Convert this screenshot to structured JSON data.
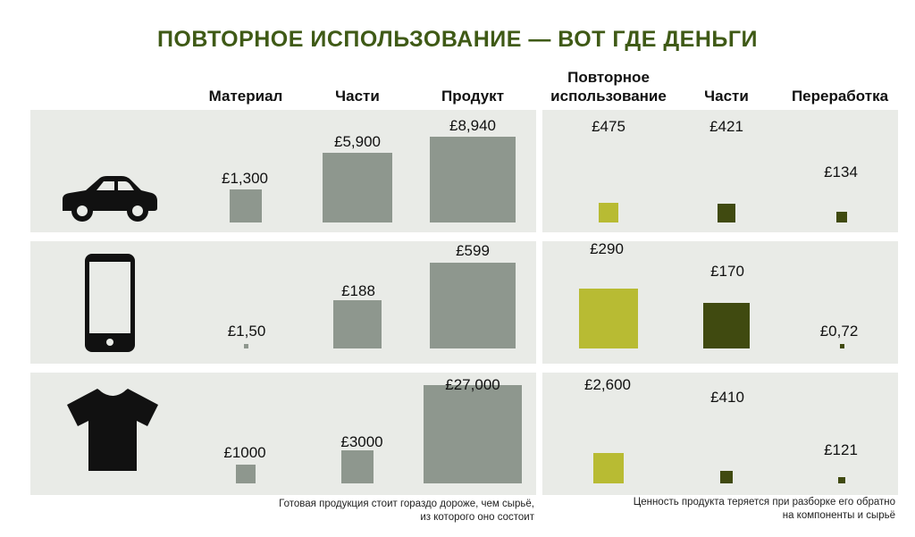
{
  "title": "ПОВТОРНОЕ ИСПОЛЬЗОВАНИЕ — ВОТ ГДЕ ДЕНЬГИ",
  "columns": [
    "Материал",
    "Части",
    "Продукт",
    "Повторное использование",
    "Части",
    "Переработка"
  ],
  "rows": [
    {
      "icon": "car-icon",
      "labels": [
        "£1,300",
        "£5,900",
        "£8,940",
        "£475",
        "£421",
        "£134"
      ]
    },
    {
      "icon": "smartphone-icon",
      "labels": [
        "£1,50",
        "£188",
        "£599",
        "£290",
        "£170",
        "£0,72"
      ]
    },
    {
      "icon": "tshirt-icon",
      "labels": [
        "£1000",
        "£3000",
        "£27,000",
        "£2,600",
        "£410",
        "£121"
      ]
    }
  ],
  "notes": {
    "left": "Готовая продукция стоит гораздо дороже, чем сырьё, из которого оно состоит",
    "right": "Ценность продукта теряется при разборке его обратно на компоненты и сырьё"
  },
  "colors": {
    "title": "#3f5a16",
    "panel": "#e9ebe7",
    "grey_bar": "#8e978e",
    "lime_bar": "#b8bb33",
    "dark_bar": "#404a10"
  },
  "chart_data": {
    "type": "bar",
    "title": "ПОВТОРНОЕ ИСПОЛЬЗОВАНИЕ — ВОТ ГДЕ ДЕНЬГИ",
    "categories": [
      "Материал",
      "Части",
      "Продукт",
      "Повторное использование",
      "Части",
      "Переработка"
    ],
    "series": [
      {
        "values": [
          1300,
          5900,
          8940,
          475,
          421,
          134
        ]
      },
      {
        "values": [
          1.5,
          188,
          599,
          290,
          170,
          0.72
        ]
      },
      {
        "values": [
          1000,
          3000,
          27000,
          2600,
          410,
          121
        ]
      }
    ]
  }
}
